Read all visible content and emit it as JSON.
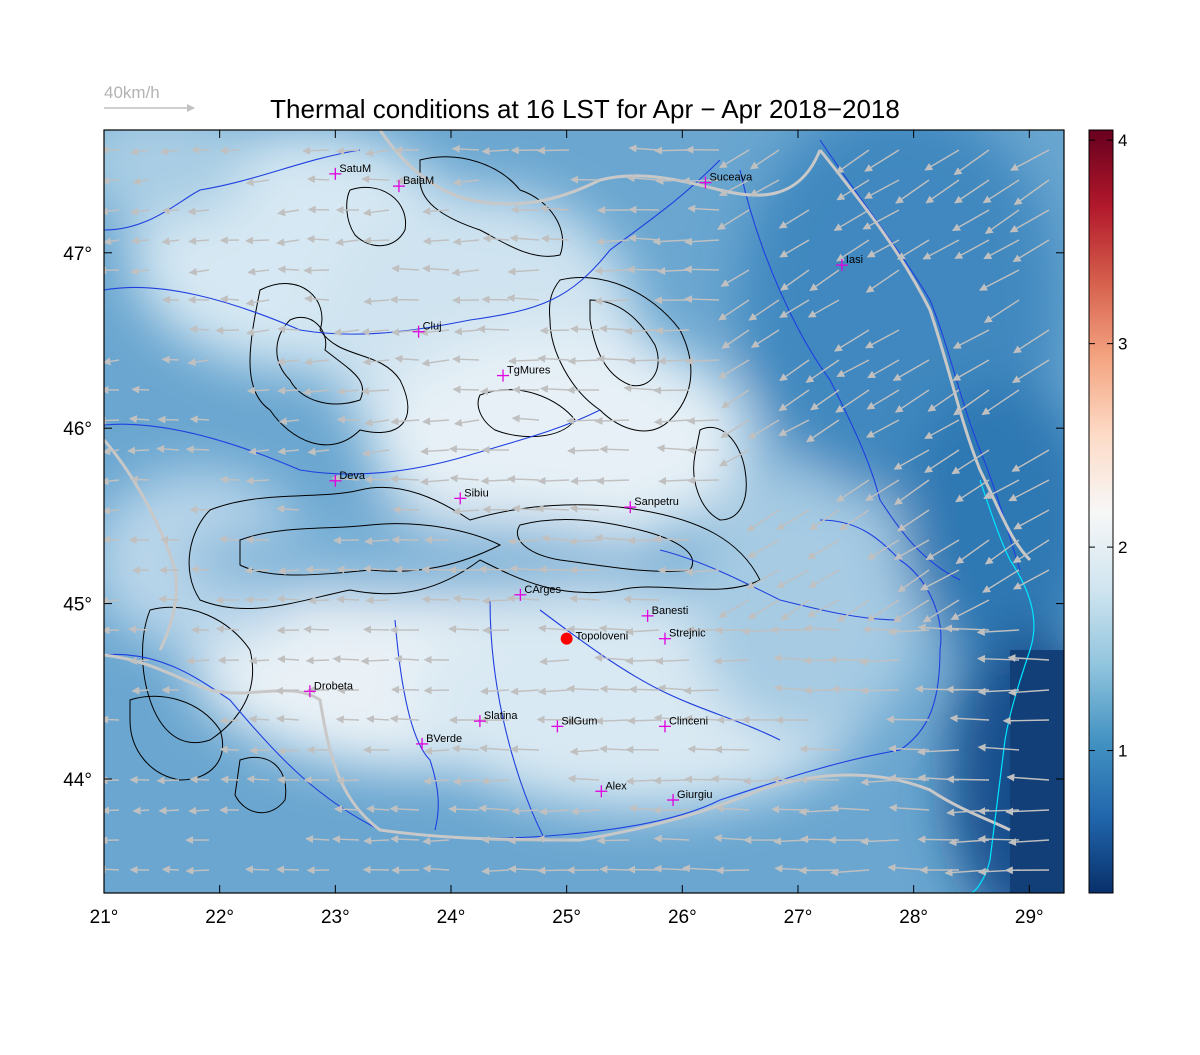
{
  "title": "Thermal conditions at 16 LST for Apr − Apr  2018−2018",
  "wind_scale": {
    "label": "40km/h"
  },
  "colors": {
    "frame": "#000000",
    "rivers": "#1f3fe0",
    "borders": "#c8c8c8",
    "contours": "#000000",
    "coast": "#00e5ff",
    "arrows": "#c0c0c0",
    "city_marker": "#e000e0",
    "highlight_point": "#ff0000",
    "cmap": [
      "#08306b",
      "#2166ac",
      "#4393c3",
      "#92c5de",
      "#d1e5f0",
      "#f7f7f7",
      "#fddbc7",
      "#f4a582",
      "#d6604d",
      "#b2182b",
      "#67001f"
    ]
  },
  "chart_data": {
    "type": "heatmap",
    "title": "Thermal conditions at 16 LST for Apr − Apr  2018−2018",
    "xlim": [
      21,
      29.3
    ],
    "ylim": [
      43.35,
      47.7
    ],
    "x_ticks": [
      {
        "value": 21,
        "label": "21°"
      },
      {
        "value": 22,
        "label": "22°"
      },
      {
        "value": 23,
        "label": "23°"
      },
      {
        "value": 24,
        "label": "24°"
      },
      {
        "value": 25,
        "label": "25°"
      },
      {
        "value": 26,
        "label": "26°"
      },
      {
        "value": 27,
        "label": "27°"
      },
      {
        "value": 28,
        "label": "28°"
      },
      {
        "value": 29,
        "label": "29°"
      }
    ],
    "y_ticks": [
      {
        "value": 44,
        "label": "44°"
      },
      {
        "value": 45,
        "label": "45°"
      },
      {
        "value": 46,
        "label": "46°"
      },
      {
        "value": 47,
        "label": "47°"
      }
    ],
    "colorbar": {
      "min": 0.3,
      "max": 4.05,
      "ticks": [
        {
          "value": 1,
          "label": "1"
        },
        {
          "value": 2,
          "label": "2"
        },
        {
          "value": 3,
          "label": "3"
        },
        {
          "value": 4,
          "label": "4"
        }
      ]
    },
    "cities": [
      {
        "name": "SatuM",
        "lon": 23.0,
        "lat": 47.45
      },
      {
        "name": "BaiaM",
        "lon": 23.55,
        "lat": 47.38
      },
      {
        "name": "Suceava",
        "lon": 26.2,
        "lat": 47.4
      },
      {
        "name": "Iasi",
        "lon": 27.38,
        "lat": 46.93
      },
      {
        "name": "Cluj",
        "lon": 23.72,
        "lat": 46.55
      },
      {
        "name": "TgMures",
        "lon": 24.45,
        "lat": 46.3
      },
      {
        "name": "Deva",
        "lon": 23.0,
        "lat": 45.7
      },
      {
        "name": "Sibiu",
        "lon": 24.08,
        "lat": 45.6
      },
      {
        "name": "Sanpetru",
        "lon": 25.55,
        "lat": 45.55
      },
      {
        "name": "CArges",
        "lon": 24.6,
        "lat": 45.05
      },
      {
        "name": "Banesti",
        "lon": 25.7,
        "lat": 44.93
      },
      {
        "name": "Strejnic",
        "lon": 25.85,
        "lat": 44.8
      },
      {
        "name": "Drobeta",
        "lon": 22.78,
        "lat": 44.5
      },
      {
        "name": "Slatina",
        "lon": 24.25,
        "lat": 44.33
      },
      {
        "name": "SilGum",
        "lon": 24.92,
        "lat": 44.3
      },
      {
        "name": "Clinceni",
        "lon": 25.85,
        "lat": 44.3
      },
      {
        "name": "BVerde",
        "lon": 23.75,
        "lat": 44.2
      },
      {
        "name": "Alex",
        "lon": 25.3,
        "lat": 43.93
      },
      {
        "name": "Giurgiu",
        "lon": 25.92,
        "lat": 43.88
      }
    ],
    "highlight": {
      "name": "Topoloveni",
      "lon": 25.0,
      "lat": 44.8
    },
    "prevailing_wind": "easterly, strongest in the east"
  }
}
